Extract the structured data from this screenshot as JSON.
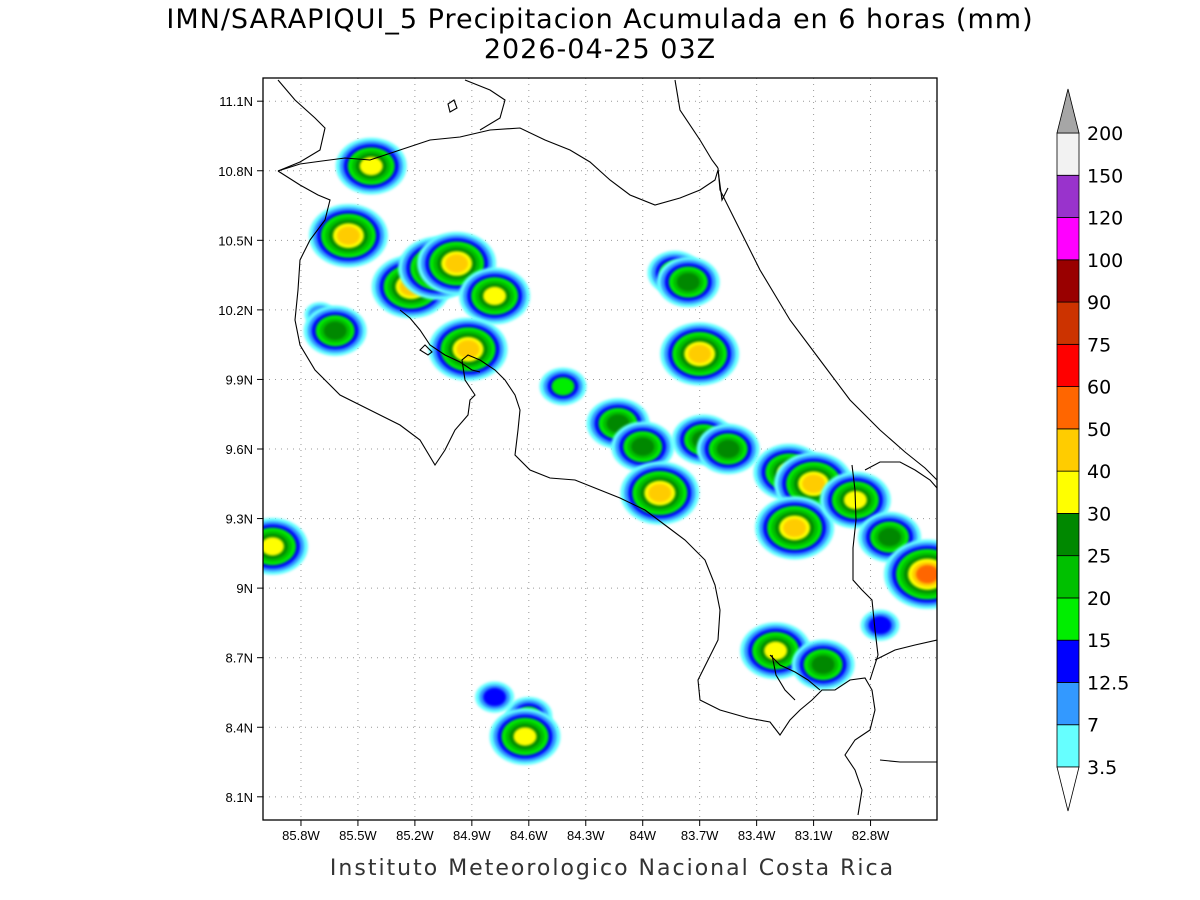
{
  "title": {
    "line1": "IMN/SARAPIQUI_5 Precipitacion Acumulada en 6 horas (mm)",
    "line2": "2026-04-25 03Z"
  },
  "footer": "Instituto Meteorologico Nacional Costa Rica",
  "map": {
    "lon_range": [
      -86.0,
      -82.45
    ],
    "lat_range": [
      8.0,
      11.2
    ],
    "lat_ticks": [
      "11.1N",
      "10.8N",
      "10.5N",
      "10.2N",
      "9.9N",
      "9.6N",
      "9.3N",
      "9N",
      "8.7N",
      "8.4N",
      "8.1N"
    ],
    "lat_values": [
      11.1,
      10.8,
      10.5,
      10.2,
      9.9,
      9.6,
      9.3,
      9.0,
      8.7,
      8.4,
      8.1
    ],
    "lon_ticks": [
      "85.8W",
      "85.5W",
      "85.2W",
      "84.9W",
      "84.6W",
      "84.3W",
      "84W",
      "83.7W",
      "83.4W",
      "83.1W",
      "82.8W"
    ],
    "lon_values": [
      -85.8,
      -85.5,
      -85.2,
      -84.9,
      -84.6,
      -84.3,
      -84.0,
      -83.7,
      -83.4,
      -83.1,
      -82.8
    ],
    "grid": true,
    "coastline_color": "#000000"
  },
  "colorbar": {
    "levels": [
      "3.5",
      "7",
      "12.5",
      "15",
      "20",
      "25",
      "30",
      "40",
      "50",
      "60",
      "75",
      "90",
      "100",
      "120",
      "150",
      "200"
    ],
    "colors": [
      "#66ffff",
      "#3399ff",
      "#0000ff",
      "#00ee00",
      "#00c000",
      "#008800",
      "#ffff00",
      "#ffcc00",
      "#ff6600",
      "#ff0000",
      "#cc3300",
      "#990000",
      "#ff00ff",
      "#9933cc",
      "#f2f2f2"
    ],
    "over_color": "#a6a6a6",
    "under_color": "#ffffff"
  },
  "precip_cells": [
    {
      "lon": -85.43,
      "lat": 10.82,
      "max": 30
    },
    {
      "lon": -85.55,
      "lat": 10.52,
      "max": 40
    },
    {
      "lon": -85.22,
      "lat": 10.3,
      "max": 40
    },
    {
      "lon": -85.08,
      "lat": 10.38,
      "max": 40
    },
    {
      "lon": -84.98,
      "lat": 10.4,
      "max": 40
    },
    {
      "lon": -84.78,
      "lat": 10.26,
      "max": 30
    },
    {
      "lon": -85.7,
      "lat": 10.18,
      "max": 7
    },
    {
      "lon": -85.62,
      "lat": 10.11,
      "max": 25
    },
    {
      "lon": -84.92,
      "lat": 10.03,
      "max": 40
    },
    {
      "lon": -84.42,
      "lat": 9.87,
      "max": 15
    },
    {
      "lon": -84.13,
      "lat": 9.71,
      "max": 25
    },
    {
      "lon": -84.0,
      "lat": 9.61,
      "max": 25
    },
    {
      "lon": -83.91,
      "lat": 9.41,
      "max": 40
    },
    {
      "lon": -83.68,
      "lat": 9.64,
      "max": 25
    },
    {
      "lon": -83.55,
      "lat": 9.6,
      "max": 25
    },
    {
      "lon": -83.7,
      "lat": 10.01,
      "max": 40
    },
    {
      "lon": -83.83,
      "lat": 10.36,
      "max": 20
    },
    {
      "lon": -83.76,
      "lat": 10.32,
      "max": 25
    },
    {
      "lon": -83.23,
      "lat": 9.5,
      "max": 30
    },
    {
      "lon": -83.1,
      "lat": 9.45,
      "max": 40
    },
    {
      "lon": -83.2,
      "lat": 9.26,
      "max": 40
    },
    {
      "lon": -82.88,
      "lat": 9.38,
      "max": 30
    },
    {
      "lon": -82.7,
      "lat": 9.22,
      "max": 25
    },
    {
      "lon": -82.5,
      "lat": 9.06,
      "max": 50
    },
    {
      "lon": -83.3,
      "lat": 8.73,
      "max": 30
    },
    {
      "lon": -83.05,
      "lat": 8.67,
      "max": 25
    },
    {
      "lon": -82.75,
      "lat": 8.84,
      "max": 12.5
    },
    {
      "lon": -85.95,
      "lat": 9.18,
      "max": 30
    },
    {
      "lon": -84.6,
      "lat": 8.45,
      "max": 15
    },
    {
      "lon": -84.62,
      "lat": 8.36,
      "max": 30
    },
    {
      "lon": -84.78,
      "lat": 8.53,
      "max": 12.5
    }
  ]
}
